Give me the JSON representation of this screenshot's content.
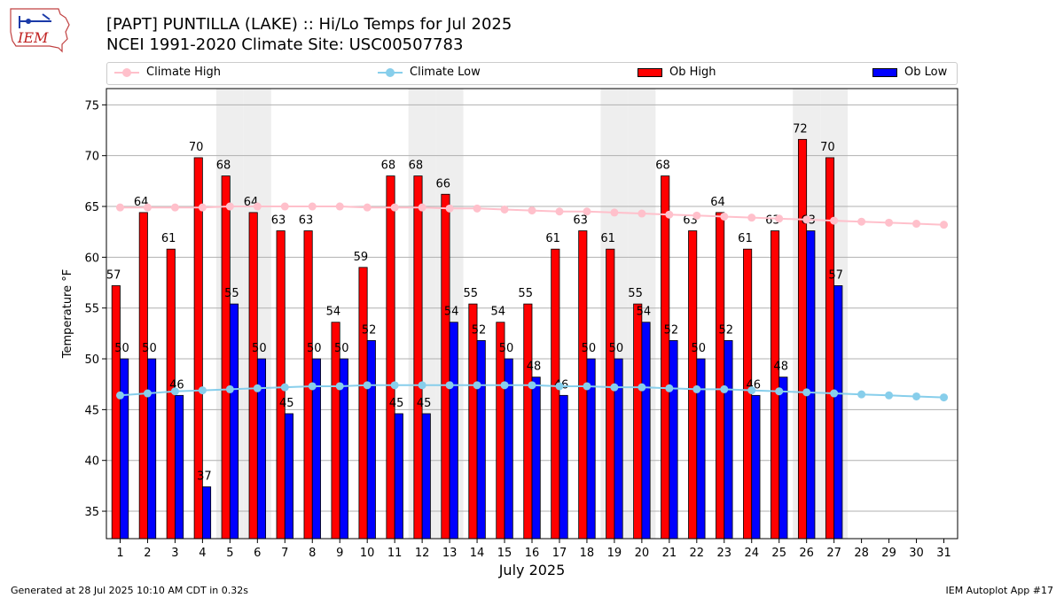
{
  "header": {
    "logo_text": "IEM",
    "title_line1": "[PAPT] PUNTILLA (LAKE) :: Hi/Lo Temps for Jul 2025",
    "title_line2": "NCEI 1991-2020 Climate Site: USC00507783"
  },
  "legend": {
    "placement": "top",
    "items": [
      {
        "label": "Climate High",
        "kind": "line",
        "color": "#ffc0cb"
      },
      {
        "label": "Climate Low",
        "kind": "line",
        "color": "#87ceeb"
      },
      {
        "label": "Ob High",
        "kind": "bar",
        "color": "#ff0000"
      },
      {
        "label": "Ob Low",
        "kind": "bar",
        "color": "#0000ff"
      }
    ]
  },
  "footer": {
    "left": "Generated at 28 Jul 2025 10:10 AM CDT in 0.32s",
    "right": "IEM Autoplot App #17"
  },
  "chart_data": {
    "type": "bar",
    "xlabel": "July 2025",
    "ylabel": "Temperature °F",
    "ylim": [
      32.3,
      76.6
    ],
    "yticks": [
      35,
      40,
      45,
      50,
      55,
      60,
      65,
      70,
      75
    ],
    "grid": "horizontal",
    "categories": [
      "1",
      "2",
      "3",
      "4",
      "5",
      "6",
      "7",
      "8",
      "9",
      "10",
      "11",
      "12",
      "13",
      "14",
      "15",
      "16",
      "17",
      "18",
      "19",
      "20",
      "21",
      "22",
      "23",
      "24",
      "25",
      "26",
      "27",
      "28",
      "29",
      "30",
      "31"
    ],
    "weekend_shaded_days": [
      5,
      6,
      12,
      13,
      19,
      20,
      26,
      27
    ],
    "series": [
      {
        "name": "Ob High",
        "kind": "bar",
        "color": "#ff0000",
        "values": [
          57.2,
          64.4,
          60.8,
          69.8,
          68,
          64.4,
          62.6,
          62.6,
          53.6,
          59,
          68,
          68,
          66.2,
          55.4,
          53.6,
          55.4,
          60.8,
          62.6,
          60.8,
          55.4,
          68,
          62.6,
          64.4,
          60.8,
          62.6,
          71.6,
          69.8,
          null,
          null,
          null,
          null
        ],
        "labels": [
          "57",
          "64",
          "61",
          "70",
          "68",
          "64",
          "63",
          "63",
          "54",
          "59",
          "68",
          "68",
          "66",
          "55",
          "54",
          "55",
          "61",
          "63",
          "61",
          "55",
          "68",
          "63",
          "64",
          "61",
          "63",
          "72",
          "70",
          "",
          "",
          "",
          ""
        ]
      },
      {
        "name": "Ob Low",
        "kind": "bar",
        "color": "#0000ff",
        "values": [
          50,
          50,
          46.4,
          37.4,
          55.4,
          50,
          44.6,
          50,
          50,
          51.8,
          44.6,
          44.6,
          53.6,
          51.8,
          50,
          48.2,
          46.4,
          50,
          50,
          53.6,
          51.8,
          50,
          51.8,
          46.4,
          48.2,
          62.6,
          57.2,
          null,
          null,
          null,
          null
        ],
        "labels": [
          "50",
          "50",
          "46",
          "37",
          "55",
          "50",
          "45",
          "50",
          "50",
          "52",
          "45",
          "45",
          "54",
          "52",
          "50",
          "48",
          "46",
          "50",
          "50",
          "54",
          "52",
          "50",
          "52",
          "46",
          "48",
          "63",
          "57",
          "",
          "",
          "",
          ""
        ]
      },
      {
        "name": "Climate High",
        "kind": "line",
        "color": "#ffc0cb",
        "values": [
          64.9,
          64.9,
          64.9,
          64.9,
          65.0,
          65.0,
          65.0,
          65.0,
          65.0,
          64.9,
          64.9,
          64.9,
          64.8,
          64.8,
          64.7,
          64.6,
          64.5,
          64.5,
          64.4,
          64.3,
          64.2,
          64.1,
          64.0,
          63.9,
          63.8,
          63.7,
          63.6,
          63.5,
          63.4,
          63.3,
          63.2
        ]
      },
      {
        "name": "Climate Low",
        "kind": "line",
        "color": "#87ceeb",
        "values": [
          46.4,
          46.6,
          46.8,
          46.9,
          47.0,
          47.1,
          47.2,
          47.3,
          47.3,
          47.4,
          47.4,
          47.4,
          47.4,
          47.4,
          47.4,
          47.4,
          47.3,
          47.3,
          47.2,
          47.2,
          47.1,
          47.0,
          47.0,
          46.9,
          46.8,
          46.7,
          46.6,
          46.5,
          46.4,
          46.3,
          46.2
        ]
      }
    ]
  }
}
